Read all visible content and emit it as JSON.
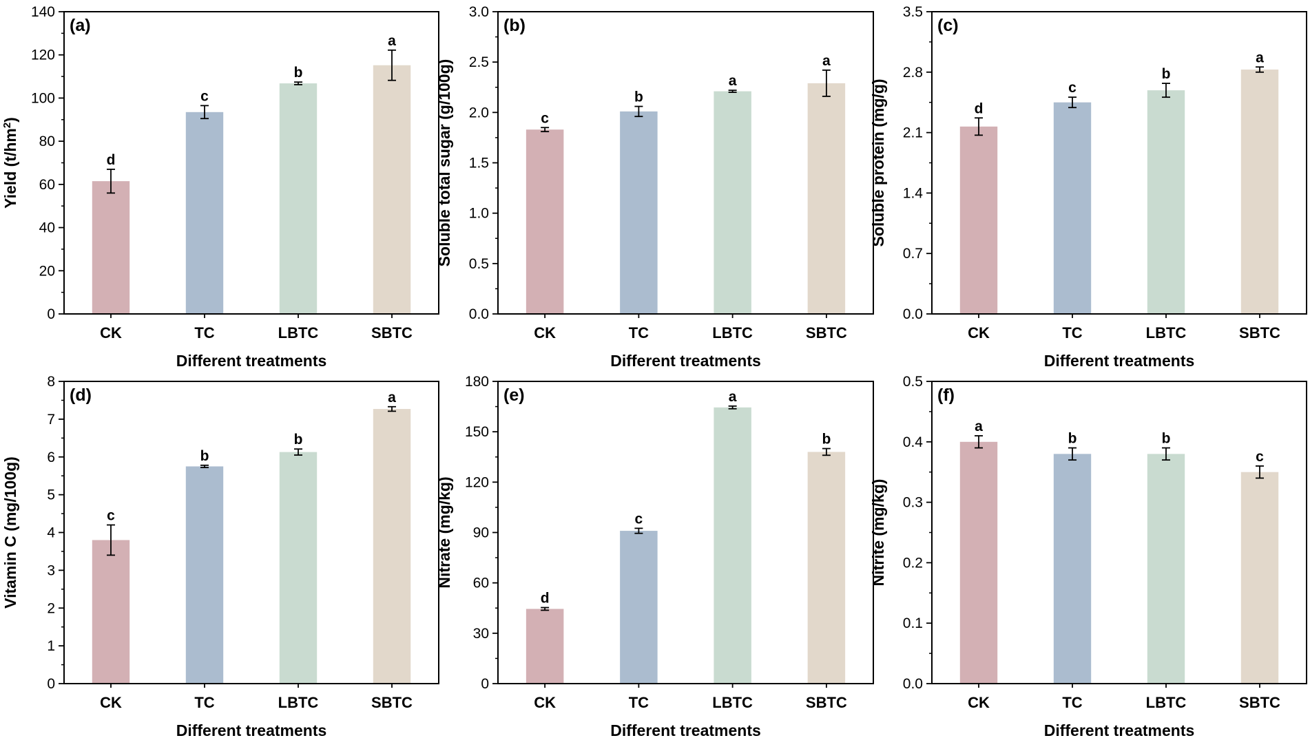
{
  "chart_data": [
    {
      "type": "bar",
      "panel_label": "(a)",
      "categories": [
        "CK",
        "TC",
        "LBTC",
        "SBTC"
      ],
      "values": [
        61.5,
        93.5,
        106.8,
        115.2
      ],
      "errors": [
        5.5,
        3.0,
        0.6,
        7.0
      ],
      "letters": [
        "d",
        "c",
        "b",
        "a"
      ],
      "ylabel": "Yield (t/hm",
      "ylabel_sup": "2",
      "ylabel_end": ")",
      "xlabel": "Different treatments",
      "ylim": [
        0,
        140
      ],
      "ticks": [
        0,
        20,
        40,
        60,
        80,
        100,
        120,
        140
      ],
      "tick_labels": [
        "0",
        "20",
        "40",
        "60",
        "80",
        "100",
        "120",
        "140"
      ]
    },
    {
      "type": "bar",
      "panel_label": "(b)",
      "categories": [
        "CK",
        "TC",
        "LBTC",
        "SBTC"
      ],
      "values": [
        1.83,
        2.01,
        2.21,
        2.29
      ],
      "errors": [
        0.02,
        0.05,
        0.01,
        0.13
      ],
      "letters": [
        "c",
        "b",
        "a",
        "a"
      ],
      "ylabel": "Soluble total sugar (g/100g)",
      "ylabel_sup": "",
      "ylabel_end": "",
      "xlabel": "Different treatments",
      "ylim": [
        0,
        3.0
      ],
      "ticks": [
        0,
        0.5,
        1.0,
        1.5,
        2.0,
        2.5,
        3.0
      ],
      "tick_labels": [
        "0.0",
        "0.5",
        "1.0",
        "1.5",
        "2.0",
        "2.5",
        "3.0"
      ]
    },
    {
      "type": "bar",
      "panel_label": "(c)",
      "categories": [
        "CK",
        "TC",
        "LBTC",
        "SBTC"
      ],
      "values": [
        2.17,
        2.45,
        2.59,
        2.83
      ],
      "errors": [
        0.1,
        0.06,
        0.08,
        0.03
      ],
      "letters": [
        "d",
        "c",
        "b",
        "a"
      ],
      "ylabel": "Soluble protein (mg/g)",
      "ylabel_sup": "",
      "ylabel_end": "",
      "xlabel": "Different treatments",
      "ylim": [
        0,
        3.5
      ],
      "ticks": [
        0,
        0.7,
        1.4,
        2.1,
        2.8,
        3.5
      ],
      "tick_labels": [
        "0.0",
        "0.7",
        "1.4",
        "2.1",
        "2.8",
        "3.5"
      ]
    },
    {
      "type": "bar",
      "panel_label": "(d)",
      "categories": [
        "CK",
        "TC",
        "LBTC",
        "SBTC"
      ],
      "values": [
        3.8,
        5.75,
        6.13,
        7.27
      ],
      "errors": [
        0.4,
        0.03,
        0.08,
        0.06
      ],
      "letters": [
        "c",
        "b",
        "b",
        "a"
      ],
      "ylabel": "Vitamin C (mg/100g)",
      "ylabel_sup": "",
      "ylabel_end": "",
      "xlabel": "Different treatments",
      "ylim": [
        0,
        8
      ],
      "ticks": [
        0,
        1,
        2,
        3,
        4,
        5,
        6,
        7,
        8
      ],
      "tick_labels": [
        "0",
        "1",
        "2",
        "3",
        "4",
        "5",
        "6",
        "7",
        "8"
      ]
    },
    {
      "type": "bar",
      "panel_label": "(e)",
      "categories": [
        "CK",
        "TC",
        "LBTC",
        "SBTC"
      ],
      "values": [
        44.5,
        91.0,
        164.5,
        138.0
      ],
      "errors": [
        0.8,
        1.5,
        0.8,
        2.0
      ],
      "letters": [
        "d",
        "c",
        "a",
        "b"
      ],
      "ylabel": "Nitrate (mg/kg)",
      "ylabel_sup": "",
      "ylabel_end": "",
      "xlabel": "Different treatments",
      "ylim": [
        0,
        180
      ],
      "ticks": [
        0,
        30,
        60,
        90,
        120,
        150,
        180
      ],
      "tick_labels": [
        "0",
        "30",
        "60",
        "90",
        "120",
        "150",
        "180"
      ]
    },
    {
      "type": "bar",
      "panel_label": "(f)",
      "categories": [
        "CK",
        "TC",
        "LBTC",
        "SBTC"
      ],
      "values": [
        0.4,
        0.38,
        0.38,
        0.35
      ],
      "errors": [
        0.01,
        0.01,
        0.01,
        0.01
      ],
      "letters": [
        "a",
        "b",
        "b",
        "c"
      ],
      "ylabel": "Nitrite (mg/kg)",
      "ylabel_sup": "",
      "ylabel_end": "",
      "xlabel": "Different treatments",
      "ylim": [
        0,
        0.5
      ],
      "ticks": [
        0,
        0.1,
        0.2,
        0.3,
        0.4,
        0.5
      ],
      "tick_labels": [
        "0.0",
        "0.1",
        "0.2",
        "0.3",
        "0.4",
        "0.5"
      ]
    }
  ],
  "colors": {
    "CK": "#d3b0b4",
    "TC": "#abbccf",
    "LBTC": "#c9dbd0",
    "SBTC": "#e2d8cb",
    "axis": "#000000"
  }
}
